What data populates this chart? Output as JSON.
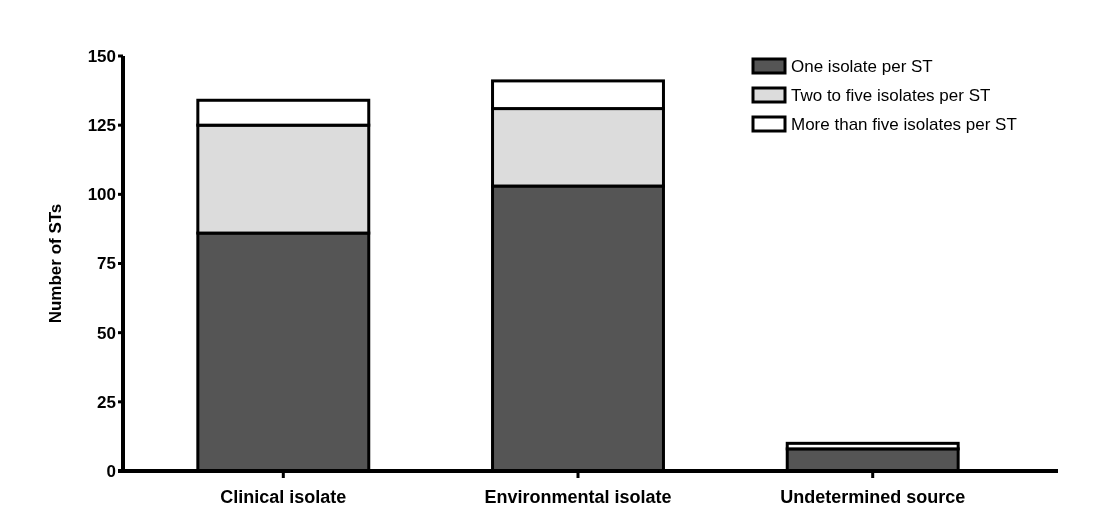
{
  "chart_data": {
    "type": "bar",
    "stacked": true,
    "ylabel": "Number of STs",
    "categories": [
      "Clinical isolate",
      "Environmental isolate",
      "Undetermined source"
    ],
    "series": [
      {
        "name": "One isolate per ST",
        "color": "#555555",
        "values": [
          86,
          103,
          8
        ]
      },
      {
        "name": "Two to five isolates per ST",
        "color": "#dcdcdc",
        "values": [
          39,
          28,
          null
        ]
      },
      {
        "name": "More than five isolates per ST",
        "color": "#ffffff",
        "values": [
          9,
          10,
          2
        ]
      }
    ],
    "ylim": [
      0,
      150
    ],
    "yticks": [
      0,
      25,
      50,
      75,
      100,
      125,
      150
    ],
    "grid": false,
    "legend": "top right"
  }
}
